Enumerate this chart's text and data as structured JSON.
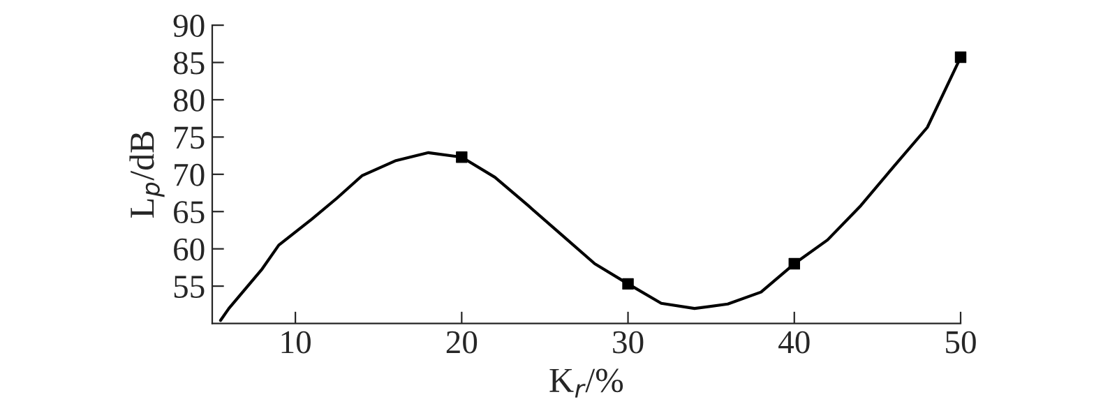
{
  "chart_data": {
    "type": "line",
    "xlabel": "K$_{r}$/%",
    "ylabel": "L$_{p}$/dB",
    "xlim": [
      5,
      50
    ],
    "ylim": [
      50,
      90
    ],
    "xticks": [
      10,
      20,
      30,
      40,
      50
    ],
    "yticks": [
      55,
      60,
      65,
      70,
      75,
      80,
      85,
      90
    ],
    "grid": false,
    "legend": false,
    "series": [
      {
        "color": "#000000",
        "marker": "none",
        "line_style": "solid",
        "x": [
          5.5,
          6,
          8,
          9,
          11,
          12.5,
          14,
          16,
          18,
          20,
          22,
          24,
          26,
          28,
          30,
          32,
          34,
          36,
          38,
          40,
          42,
          44,
          46,
          48,
          50
        ],
        "values": [
          50.4,
          52.0,
          57.3,
          60.5,
          64.0,
          66.8,
          69.8,
          71.8,
          72.9,
          72.3,
          69.6,
          65.8,
          61.9,
          58.0,
          55.3,
          52.7,
          52.0,
          52.6,
          54.2,
          58.0,
          61.2,
          65.8,
          71.1,
          76.3,
          85.7
        ]
      },
      {
        "type": "scatter",
        "color": "#000000",
        "marker": "square",
        "x": [
          20,
          30,
          40,
          50
        ],
        "values": [
          72.3,
          55.3,
          58.0,
          85.7
        ]
      }
    ]
  }
}
